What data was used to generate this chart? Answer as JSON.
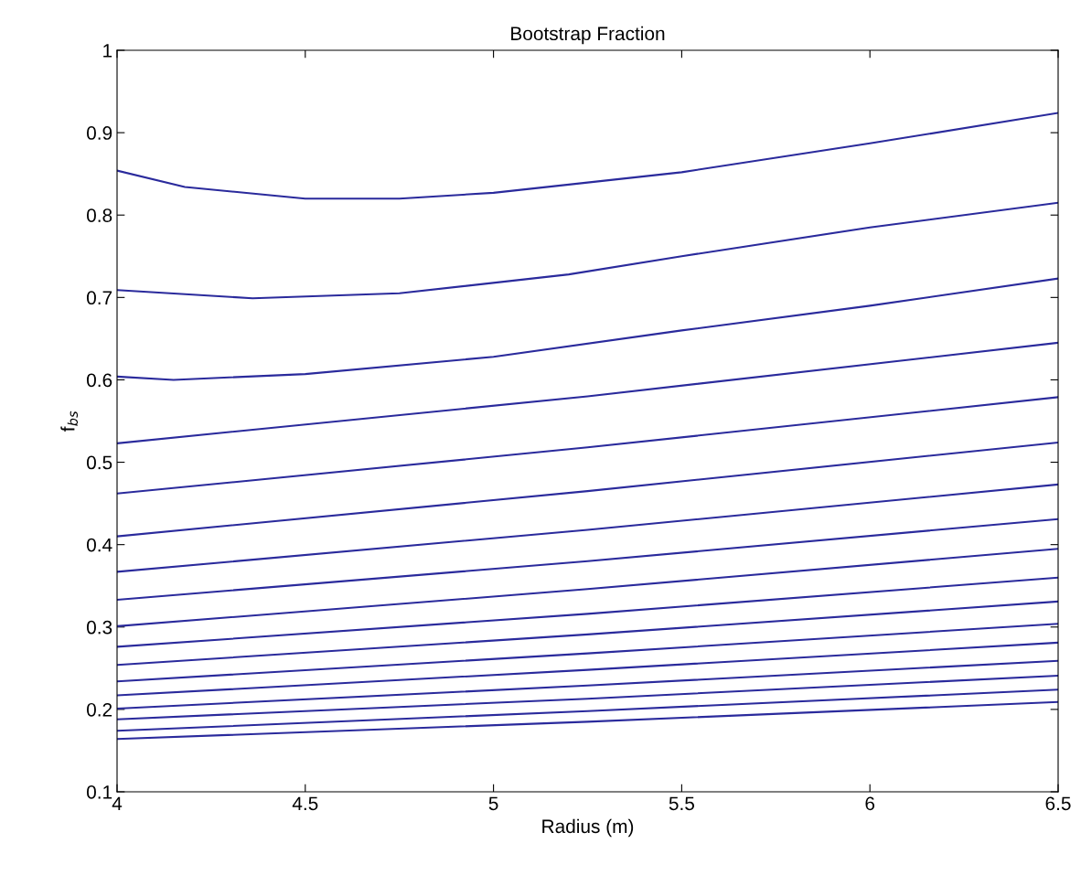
{
  "chart_data": {
    "type": "line",
    "title": "Bootstrap Fraction",
    "xlabel": "Radius (m)",
    "ylabel": "f$_{bs}$",
    "xlim": [
      4,
      6.5
    ],
    "xticks": [
      4,
      4.5,
      5,
      5.5,
      6,
      6.5
    ],
    "ylim": [
      0.1,
      1
    ],
    "yticks": [
      0.1,
      0.2,
      0.3,
      0.4,
      0.5,
      0.6,
      0.7,
      0.8,
      0.9,
      1
    ],
    "grid": false,
    "marker": "none",
    "line_style": "solid",
    "series": [
      {
        "color": "#2a2a9c",
        "x": [
          4,
          4.18,
          4.5,
          4.75,
          5,
          5.5,
          6,
          6.5
        ],
        "values": [
          0.854,
          0.834,
          0.82,
          0.82,
          0.827,
          0.852,
          0.887,
          0.924
        ]
      },
      {
        "color": "#2a2a9c",
        "x": [
          4,
          4.36,
          4.75,
          5.2,
          5.5,
          6,
          6.5
        ],
        "values": [
          0.709,
          0.699,
          0.705,
          0.728,
          0.75,
          0.785,
          0.815
        ]
      },
      {
        "color": "#2a2a9c",
        "x": [
          4,
          4.15,
          4.5,
          5,
          5.5,
          6,
          6.5
        ],
        "values": [
          0.604,
          0.6,
          0.607,
          0.628,
          0.66,
          0.69,
          0.723
        ]
      },
      {
        "color": "#2a2a9c",
        "x": [
          4,
          5.25,
          6.5
        ],
        "values": [
          0.523,
          0.58,
          0.645
        ]
      },
      {
        "color": "#2a2a9c",
        "x": [
          4,
          5.25,
          6.5
        ],
        "values": [
          0.462,
          0.518,
          0.579
        ]
      },
      {
        "color": "#2a2a9c",
        "x": [
          4,
          5.25,
          6.5
        ],
        "values": [
          0.41,
          0.465,
          0.524
        ]
      },
      {
        "color": "#2a2a9c",
        "x": [
          4,
          5.25,
          6.5
        ],
        "values": [
          0.367,
          0.418,
          0.473
        ]
      },
      {
        "color": "#2a2a9c",
        "x": [
          4,
          5.25,
          6.5
        ],
        "values": [
          0.333,
          0.38,
          0.431
        ]
      },
      {
        "color": "#2a2a9c",
        "x": [
          4,
          5.25,
          6.5
        ],
        "values": [
          0.301,
          0.346,
          0.395
        ]
      },
      {
        "color": "#2a2a9c",
        "x": [
          4,
          5.25,
          6.5
        ],
        "values": [
          0.276,
          0.316,
          0.36
        ]
      },
      {
        "color": "#2a2a9c",
        "x": [
          4,
          5.25,
          6.5
        ],
        "values": [
          0.254,
          0.291,
          0.331
        ]
      },
      {
        "color": "#2a2a9c",
        "x": [
          4,
          5.25,
          6.5
        ],
        "values": [
          0.234,
          0.268,
          0.304
        ]
      },
      {
        "color": "#2a2a9c",
        "x": [
          4,
          5.25,
          6.5
        ],
        "values": [
          0.217,
          0.248,
          0.281
        ]
      },
      {
        "color": "#2a2a9c",
        "x": [
          4,
          5.25,
          6.5
        ],
        "values": [
          0.201,
          0.229,
          0.259
        ]
      },
      {
        "color": "#2a2a9c",
        "x": [
          4,
          5.25,
          6.5
        ],
        "values": [
          0.188,
          0.213,
          0.241
        ]
      },
      {
        "color": "#2a2a9c",
        "x": [
          4,
          5.25,
          6.5
        ],
        "values": [
          0.174,
          0.198,
          0.224
        ]
      },
      {
        "color": "#2a2a9c",
        "x": [
          4,
          5.25,
          6.5
        ],
        "values": [
          0.164,
          0.185,
          0.209
        ]
      }
    ]
  }
}
